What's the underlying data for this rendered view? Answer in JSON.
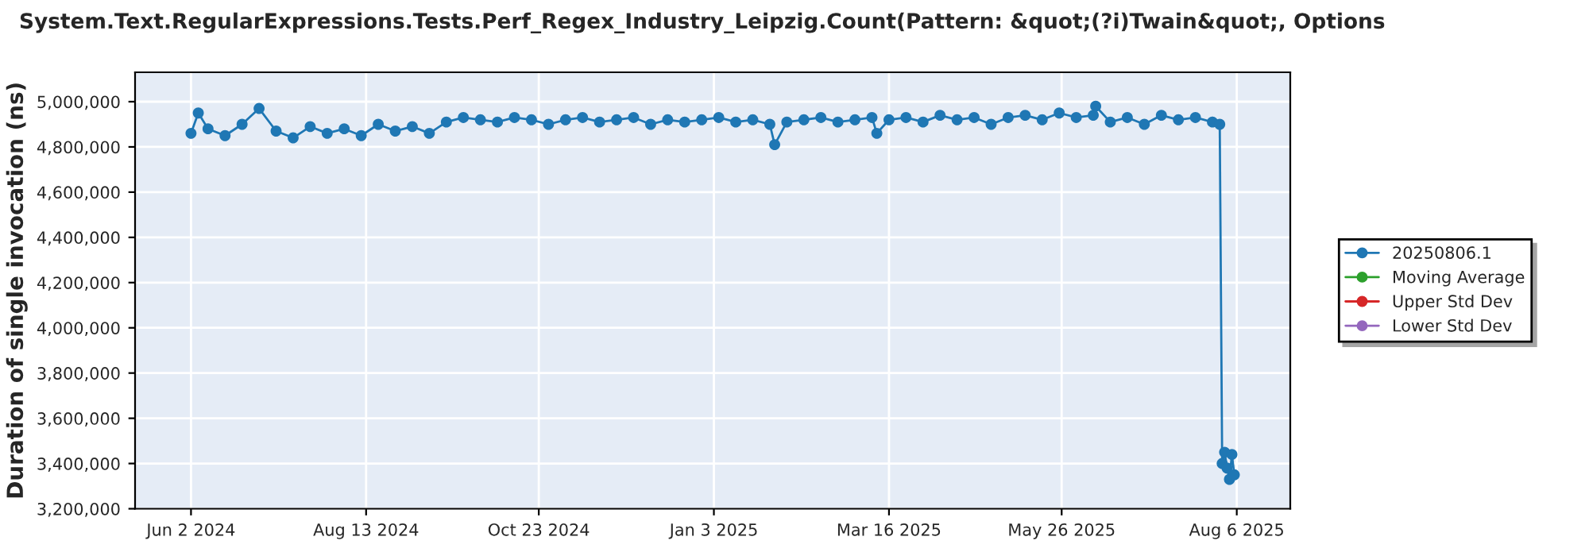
{
  "chart_data": {
    "type": "line",
    "title": "System.Text.RegularExpressions.Tests.Perf_Regex_Industry_Leipzig.Count(Pattern: &quot;(?i)Twain&quot;, Options",
    "ylabel": "Duration of single invocation (ns)",
    "xlim": [
      "2024-05-10",
      "2025-08-28"
    ],
    "xticks": [
      {
        "value": "2024-06-02",
        "label": "Jun 2 2024"
      },
      {
        "value": "2024-08-13",
        "label": "Aug 13 2024"
      },
      {
        "value": "2024-10-23",
        "label": "Oct 23 2024"
      },
      {
        "value": "2025-01-03",
        "label": "Jan 3 2025"
      },
      {
        "value": "2025-03-16",
        "label": "Mar 16 2025"
      },
      {
        "value": "2025-05-26",
        "label": "May 26 2025"
      },
      {
        "value": "2025-08-06",
        "label": "Aug 6 2025"
      }
    ],
    "ylim": [
      3200000,
      5130000
    ],
    "yticks": [
      {
        "value": 3200000,
        "label": "3,200,000"
      },
      {
        "value": 3400000,
        "label": "3,400,000"
      },
      {
        "value": 3600000,
        "label": "3,600,000"
      },
      {
        "value": 3800000,
        "label": "3,800,000"
      },
      {
        "value": 4000000,
        "label": "4,000,000"
      },
      {
        "value": 4200000,
        "label": "4,200,000"
      },
      {
        "value": 4400000,
        "label": "4,400,000"
      },
      {
        "value": 4600000,
        "label": "4,600,000"
      },
      {
        "value": 4800000,
        "label": "4,800,000"
      },
      {
        "value": 5000000,
        "label": "5,000,000"
      }
    ],
    "grid": true,
    "legend": "right",
    "marker": "circle",
    "line_style": "solid",
    "series": [
      {
        "name": "20250806.1",
        "color": "#1f77b4",
        "x": [
          "2024-06-02",
          "2024-06-05",
          "2024-06-09",
          "2024-06-16",
          "2024-06-23",
          "2024-06-30",
          "2024-07-07",
          "2024-07-14",
          "2024-07-21",
          "2024-07-28",
          "2024-08-04",
          "2024-08-11",
          "2024-08-18",
          "2024-08-25",
          "2024-09-01",
          "2024-09-08",
          "2024-09-15",
          "2024-09-22",
          "2024-09-29",
          "2024-10-06",
          "2024-10-13",
          "2024-10-20",
          "2024-10-27",
          "2024-11-03",
          "2024-11-10",
          "2024-11-17",
          "2024-11-24",
          "2024-12-01",
          "2024-12-08",
          "2024-12-15",
          "2024-12-22",
          "2024-12-29",
          "2025-01-05",
          "2025-01-12",
          "2025-01-19",
          "2025-01-26",
          "2025-01-28",
          "2025-02-02",
          "2025-02-09",
          "2025-02-16",
          "2025-02-23",
          "2025-03-02",
          "2025-03-09",
          "2025-03-11",
          "2025-03-16",
          "2025-03-23",
          "2025-03-30",
          "2025-04-06",
          "2025-04-13",
          "2025-04-20",
          "2025-04-27",
          "2025-05-04",
          "2025-05-11",
          "2025-05-18",
          "2025-05-25",
          "2025-06-01",
          "2025-06-08",
          "2025-06-09",
          "2025-06-15",
          "2025-06-22",
          "2025-06-29",
          "2025-07-06",
          "2025-07-13",
          "2025-07-20",
          "2025-07-27",
          "2025-07-30",
          "2025-07-31",
          "2025-08-01",
          "2025-08-02",
          "2025-08-03",
          "2025-08-04",
          "2025-08-05"
        ],
        "values": [
          4860000,
          4950000,
          4880000,
          4850000,
          4900000,
          4970000,
          4870000,
          4840000,
          4890000,
          4860000,
          4880000,
          4850000,
          4900000,
          4870000,
          4890000,
          4860000,
          4910000,
          4930000,
          4920000,
          4910000,
          4930000,
          4920000,
          4900000,
          4920000,
          4930000,
          4910000,
          4920000,
          4930000,
          4900000,
          4920000,
          4910000,
          4920000,
          4930000,
          4910000,
          4920000,
          4900000,
          4810000,
          4910000,
          4920000,
          4930000,
          4910000,
          4920000,
          4930000,
          4860000,
          4920000,
          4930000,
          4910000,
          4940000,
          4920000,
          4930000,
          4900000,
          4930000,
          4940000,
          4920000,
          4950000,
          4930000,
          4940000,
          4980000,
          4910000,
          4930000,
          4900000,
          4940000,
          4920000,
          4930000,
          4910000,
          4900000,
          3400000,
          3450000,
          3380000,
          3330000,
          3440000,
          3350000
        ]
      },
      {
        "name": "Moving Average",
        "color": "#2ca02c"
      },
      {
        "name": "Upper Std Dev",
        "color": "#d62728"
      },
      {
        "name": "Lower Std Dev",
        "color": "#9467bd"
      }
    ]
  }
}
